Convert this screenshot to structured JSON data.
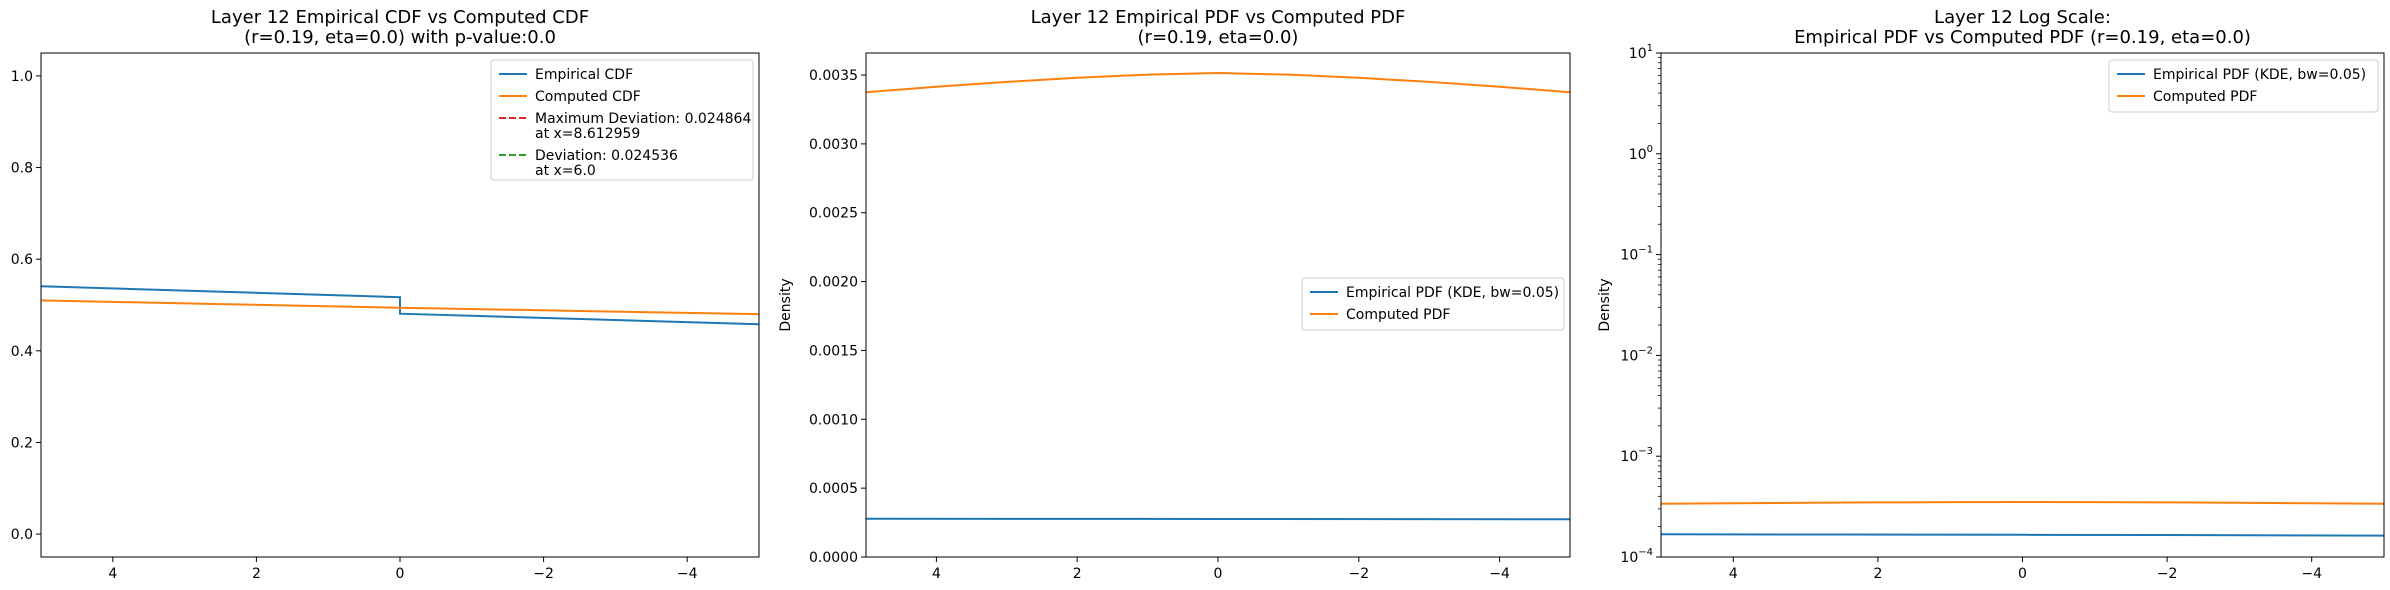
{
  "chart_data": [
    {
      "type": "line",
      "title": "Layer 12 Empirical CDF vs Computed CDF\n(r=0.19, eta=0.0) with p-value:0.0",
      "xlabel": "",
      "ylabel": "",
      "xlim": [
        5,
        -5
      ],
      "ylim": [
        -0.05,
        1.05
      ],
      "yscale": "linear",
      "grid": false,
      "legend_position": "top-right",
      "xticks": [
        4,
        2,
        0,
        -2,
        -4
      ],
      "xtick_labels": [
        "4",
        "2",
        "0",
        "−2",
        "−4"
      ],
      "yticks": [
        0.0,
        0.2,
        0.4,
        0.6,
        0.8,
        1.0
      ],
      "ytick_labels": [
        "0.0",
        "0.2",
        "0.4",
        "0.6",
        "0.8",
        "1.0"
      ],
      "series": [
        {
          "name": "Empirical CDF",
          "color": "#1f77b4",
          "style": "solid",
          "x": [
            5,
            0,
            0,
            -5
          ],
          "y": [
            0.541,
            0.517,
            0.481,
            0.458
          ]
        },
        {
          "name": "Computed CDF",
          "color": "#ff7f0e",
          "style": "solid",
          "x": [
            5,
            2.5,
            0,
            -2.5,
            -5
          ],
          "y": [
            0.51,
            0.502,
            0.494,
            0.487,
            0.48
          ]
        }
      ],
      "legend_entries": [
        {
          "label": "Empirical CDF",
          "color": "#1f77b4",
          "style": "solid"
        },
        {
          "label": "Computed CDF",
          "color": "#ff7f0e",
          "style": "solid"
        },
        {
          "label": "Maximum Deviation: 0.024864\nat x=8.612959",
          "color": "#d62728",
          "style": "dashed"
        },
        {
          "label": "Deviation: 0.024536\nat x=6.0",
          "color": "#2ca02c",
          "style": "dashed"
        }
      ]
    },
    {
      "type": "line",
      "title": "Layer 12 Empirical PDF vs Computed PDF\n(r=0.19, eta=0.0)",
      "xlabel": "",
      "ylabel": "Density",
      "xlim": [
        5,
        -5
      ],
      "ylim": [
        0.0,
        0.00366
      ],
      "yscale": "linear",
      "grid": false,
      "legend_position": "center-right",
      "xticks": [
        4,
        2,
        0,
        -2,
        -4
      ],
      "xtick_labels": [
        "4",
        "2",
        "0",
        "−2",
        "−4"
      ],
      "yticks": [
        0.0,
        0.0005,
        0.001,
        0.0015,
        0.002,
        0.0025,
        0.003,
        0.0035
      ],
      "ytick_labels": [
        "0.0000",
        "0.0005",
        "0.0010",
        "0.0015",
        "0.0020",
        "0.0025",
        "0.0030",
        "0.0035"
      ],
      "series": [
        {
          "name": "Empirical PDF (KDE, bw=0.05)",
          "color": "#1f77b4",
          "style": "solid",
          "x": [
            5,
            2.5,
            0,
            -2.5,
            -5
          ],
          "y": [
            0.000278,
            0.000277,
            0.000276,
            0.000275,
            0.000274
          ]
        },
        {
          "name": "Computed PDF",
          "color": "#ff7f0e",
          "style": "solid",
          "x": [
            5,
            4,
            3,
            2,
            1,
            0,
            -1,
            -2,
            -3,
            -4,
            -5
          ],
          "y": [
            0.003375,
            0.003415,
            0.00345,
            0.00348,
            0.003503,
            0.003515,
            0.003503,
            0.00348,
            0.00345,
            0.003415,
            0.003375
          ]
        }
      ],
      "legend_entries": [
        {
          "label": "Empirical PDF (KDE, bw=0.05)",
          "color": "#1f77b4",
          "style": "solid"
        },
        {
          "label": "Computed PDF",
          "color": "#ff7f0e",
          "style": "solid"
        }
      ]
    },
    {
      "type": "line",
      "title": "Layer 12 Log Scale:\nEmpirical PDF vs Computed PDF (r=0.19, eta=0.0)",
      "xlabel": "",
      "ylabel": "Density",
      "xlim": [
        5,
        -5
      ],
      "ylim": [
        0.0001,
        10
      ],
      "yscale": "log",
      "grid": false,
      "legend_position": "top-right",
      "xticks": [
        4,
        2,
        0,
        -2,
        -4
      ],
      "xtick_labels": [
        "4",
        "2",
        "0",
        "−2",
        "−4"
      ],
      "yticks": [
        0.0001,
        0.001,
        0.01,
        0.1,
        1,
        10
      ],
      "ytick_labels": [
        [
          "10",
          "−4"
        ],
        [
          "10",
          "−3"
        ],
        [
          "10",
          "−2"
        ],
        [
          "10",
          "−1"
        ],
        [
          "10",
          "0"
        ],
        [
          "10",
          "1"
        ]
      ],
      "series": [
        {
          "name": "Empirical PDF (KDE, bw=0.05)",
          "color": "#1f77b4",
          "style": "solid",
          "x": [
            5,
            2.5,
            0,
            -2.5,
            -5
          ],
          "y": [
            0.000168,
            0.000167,
            0.000166,
            0.000165,
            0.000163
          ]
        },
        {
          "name": "Computed PDF",
          "color": "#ff7f0e",
          "style": "solid",
          "x": [
            5,
            4,
            3,
            2,
            1,
            0,
            -1,
            -2,
            -3,
            -4,
            -5
          ],
          "y": [
            0.000337,
            0.000341,
            0.000345,
            0.000348,
            0.00035,
            0.000351,
            0.00035,
            0.000348,
            0.000345,
            0.000341,
            0.000337
          ]
        }
      ],
      "legend_entries": [
        {
          "label": "Empirical PDF (KDE, bw=0.05)",
          "color": "#1f77b4",
          "style": "solid"
        },
        {
          "label": "Computed PDF",
          "color": "#ff7f0e",
          "style": "solid"
        }
      ]
    }
  ]
}
